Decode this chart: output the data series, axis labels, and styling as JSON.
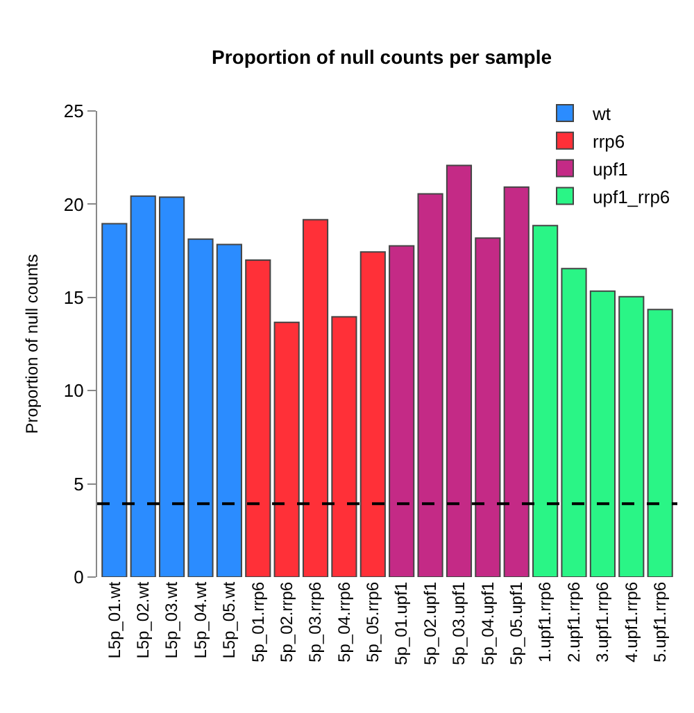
{
  "chart_data": {
    "type": "bar",
    "title": "Proportion of null counts per sample",
    "ylabel": "Proportion of null counts",
    "categories": [
      "L5p_01.wt",
      "L5p_02.wt",
      "L5p_03.wt",
      "L5p_04.wt",
      "L5p_05.wt",
      "5p_01.rrp6",
      "5p_02.rrp6",
      "5p_03.rrp6",
      "5p_04.rrp6",
      "5p_05.rrp6",
      "5p_01.upf1",
      "5p_02.upf1",
      "5p_03.upf1",
      "5p_04.upf1",
      "5p_05.upf1",
      "1.upf1.rrp6",
      "2.upf1.rrp6",
      "3.upf1.rrp6",
      "4.upf1.rrp6",
      "5.upf1.rrp6"
    ],
    "series": [
      {
        "name": "wt",
        "color": "#2b8cff",
        "values": [
          18.95,
          20.43,
          20.38,
          18.13,
          17.84,
          null,
          null,
          null,
          null,
          null,
          null,
          null,
          null,
          null,
          null,
          null,
          null,
          null,
          null,
          null
        ]
      },
      {
        "name": "rrp6",
        "color": "#ff3038",
        "values": [
          null,
          null,
          null,
          null,
          null,
          17.0,
          13.66,
          19.17,
          13.96,
          17.44,
          null,
          null,
          null,
          null,
          null,
          null,
          null,
          null,
          null,
          null
        ]
      },
      {
        "name": "upf1",
        "color": "#c42a86",
        "values": [
          null,
          null,
          null,
          null,
          null,
          null,
          null,
          null,
          null,
          null,
          17.76,
          20.55,
          22.08,
          18.18,
          20.92,
          null,
          null,
          null,
          null,
          null
        ]
      },
      {
        "name": "upf1_rrp6",
        "color": "#2af586",
        "values": [
          null,
          null,
          null,
          null,
          null,
          null,
          null,
          null,
          null,
          null,
          null,
          null,
          null,
          null,
          null,
          18.85,
          16.55,
          15.34,
          15.04,
          14.35
        ]
      }
    ],
    "ylim": [
      0,
      25
    ],
    "yticks": [
      0,
      5,
      10,
      15,
      20,
      25
    ],
    "legend": "top right",
    "ref_lines": [
      {
        "axis": "y",
        "value": 3.93,
        "color": "#000000",
        "line_style": "dashed"
      }
    ]
  }
}
